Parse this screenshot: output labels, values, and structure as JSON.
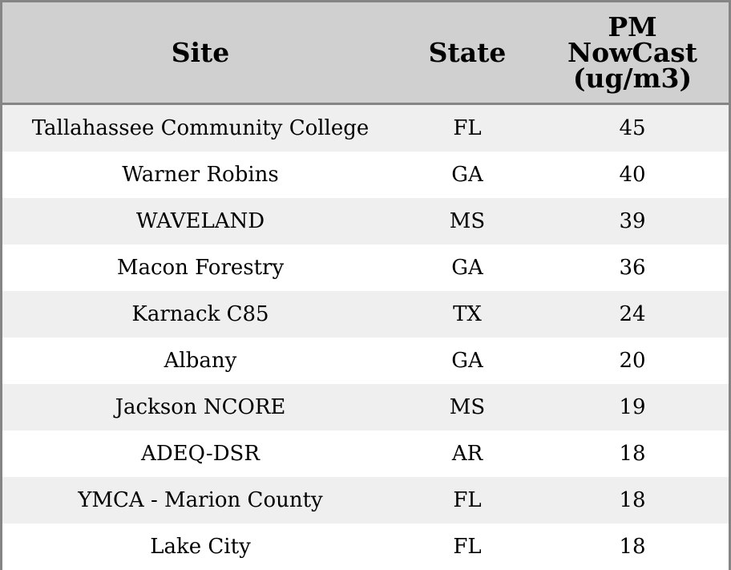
{
  "chart_data": {
    "type": "table",
    "columns": [
      "Site",
      "State",
      "PM NowCast (ug/m3)"
    ],
    "rows": [
      {
        "site": "Tallahassee Community College",
        "state": "FL",
        "value": "45"
      },
      {
        "site": "Warner Robins",
        "state": "GA",
        "value": "40"
      },
      {
        "site": "WAVELAND",
        "state": "MS",
        "value": "39"
      },
      {
        "site": "Macon Forestry",
        "state": "GA",
        "value": "36"
      },
      {
        "site": "Karnack C85",
        "state": "TX",
        "value": "24"
      },
      {
        "site": "Albany",
        "state": "GA",
        "value": "20"
      },
      {
        "site": "Jackson NCORE",
        "state": "MS",
        "value": "19"
      },
      {
        "site": "ADEQ-DSR",
        "state": "AR",
        "value": "18"
      },
      {
        "site": "YMCA - Marion County",
        "state": "FL",
        "value": "18"
      },
      {
        "site": "Lake City",
        "state": "FL",
        "value": "18"
      }
    ],
    "colors": {
      "header_bg": "#d0d0d0",
      "row_alt_bg": "#efefef",
      "row_bg": "#ffffff",
      "border": "#858585"
    }
  }
}
